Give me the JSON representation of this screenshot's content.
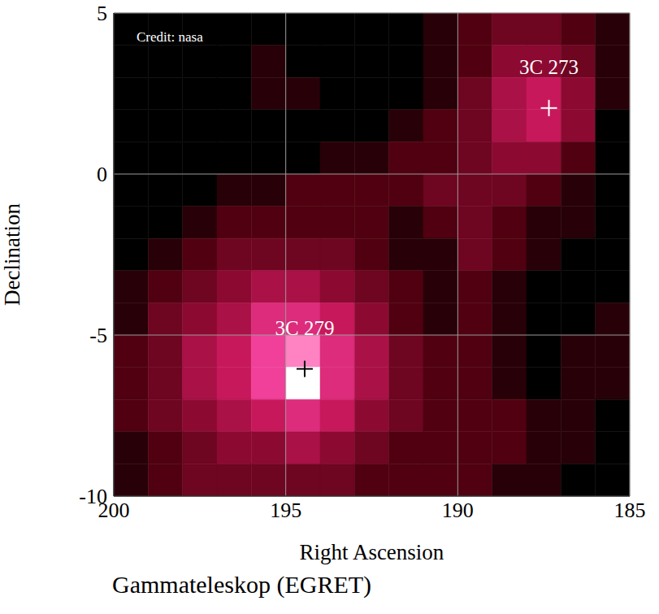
{
  "chart_data": {
    "type": "heatmap",
    "xlabel": "Right Ascension",
    "ylabel": "Declination",
    "caption": "Gammateleskop (EGRET)",
    "annotations": [
      "Credit: nasa"
    ],
    "xlim": [
      200,
      185
    ],
    "ylim": [
      -10,
      5
    ],
    "xticks": [
      200,
      195,
      190,
      185
    ],
    "yticks": [
      -10,
      -5,
      0,
      5
    ],
    "grid": true,
    "x_edges": [
      200,
      199,
      198,
      197,
      196,
      195,
      194,
      193,
      192,
      191,
      190,
      189,
      188,
      187,
      186,
      185
    ],
    "y_edges": [
      5,
      4,
      3,
      2,
      1,
      0,
      -1,
      -2,
      -3,
      -4,
      -5,
      -6,
      -7,
      -8,
      -9,
      -10
    ],
    "zlim": [
      0,
      10
    ],
    "cells": [
      [
        0,
        0,
        0,
        0,
        0,
        0,
        0,
        0,
        0,
        1,
        2,
        3,
        3,
        2,
        1
      ],
      [
        0,
        0,
        0,
        0,
        1,
        0,
        0,
        0,
        0,
        1,
        2,
        4,
        4,
        3,
        1
      ],
      [
        0,
        0,
        0,
        0,
        1,
        1,
        0,
        0,
        0,
        1,
        3,
        5,
        6,
        4,
        1
      ],
      [
        0,
        0,
        0,
        0,
        0,
        0,
        0,
        0,
        1,
        2,
        3,
        5,
        6,
        4,
        0
      ],
      [
        0,
        0,
        0,
        0,
        0,
        0,
        1,
        1,
        2,
        2,
        3,
        4,
        4,
        2,
        0
      ],
      [
        0,
        0,
        0,
        1,
        1,
        2,
        2,
        2,
        2,
        3,
        3,
        3,
        2,
        1,
        0
      ],
      [
        0,
        0,
        1,
        2,
        2,
        2,
        2,
        2,
        1,
        2,
        3,
        2,
        1,
        1,
        0
      ],
      [
        0,
        1,
        2,
        3,
        3,
        3,
        3,
        2,
        1,
        1,
        3,
        2,
        1,
        0,
        0
      ],
      [
        1,
        2,
        3,
        4,
        5,
        5,
        4,
        3,
        2,
        1,
        2,
        1,
        0,
        0,
        0
      ],
      [
        1,
        3,
        4,
        5,
        7,
        7,
        6,
        4,
        2,
        1,
        2,
        1,
        0,
        0,
        1
      ],
      [
        2,
        3,
        5,
        6,
        8,
        9,
        7,
        5,
        3,
        2,
        2,
        1,
        0,
        1,
        1
      ],
      [
        2,
        3,
        5,
        6,
        8,
        10,
        7,
        5,
        3,
        2,
        2,
        1,
        0,
        1,
        1
      ],
      [
        2,
        3,
        4,
        5,
        6,
        7,
        6,
        4,
        3,
        2,
        2,
        2,
        1,
        1,
        0
      ],
      [
        1,
        2,
        3,
        4,
        4,
        5,
        4,
        3,
        2,
        2,
        2,
        2,
        1,
        1,
        0
      ],
      [
        1,
        2,
        3,
        3,
        3,
        3,
        3,
        2,
        2,
        2,
        2,
        1,
        1,
        0,
        0
      ]
    ],
    "sources": [
      {
        "label": "3C 273",
        "x": 187.35,
        "y": 2.05,
        "marker": "+",
        "color": "#ffffff"
      },
      {
        "label": "3C 279",
        "x": 194.45,
        "y": -6.05,
        "marker": "+",
        "color": "#000000"
      }
    ]
  }
}
